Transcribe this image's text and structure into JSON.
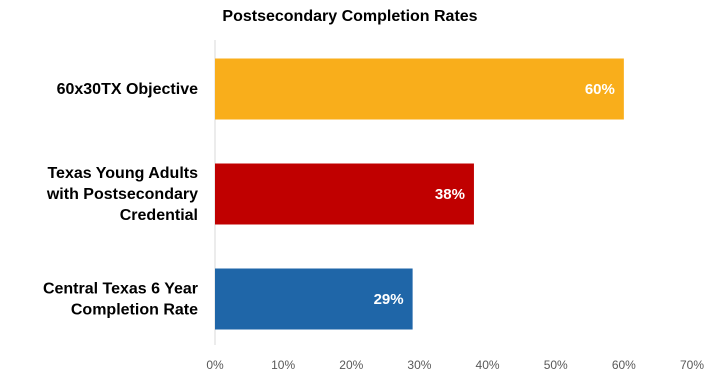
{
  "chart_data": {
    "type": "bar",
    "orientation": "horizontal",
    "title": "Postsecondary Completion Rates",
    "categories": [
      [
        "60x30TX Objective"
      ],
      [
        "Texas Young Adults",
        "with Postsecondary",
        "Credential"
      ],
      [
        "Central Texas 6 Year",
        "Completion Rate"
      ]
    ],
    "values": [
      60,
      38,
      29
    ],
    "value_labels": [
      "60%",
      "38%",
      "29%"
    ],
    "colors": [
      "#F9AE1B",
      "#C00000",
      "#1F66A8"
    ],
    "xlim": [
      0,
      70
    ],
    "xticks": [
      0,
      10,
      20,
      30,
      40,
      50,
      60,
      70
    ],
    "xtick_labels": [
      "0%",
      "10%",
      "20%",
      "30%",
      "40%",
      "50%",
      "60%",
      "70%"
    ],
    "grid": false,
    "legend": "none"
  }
}
